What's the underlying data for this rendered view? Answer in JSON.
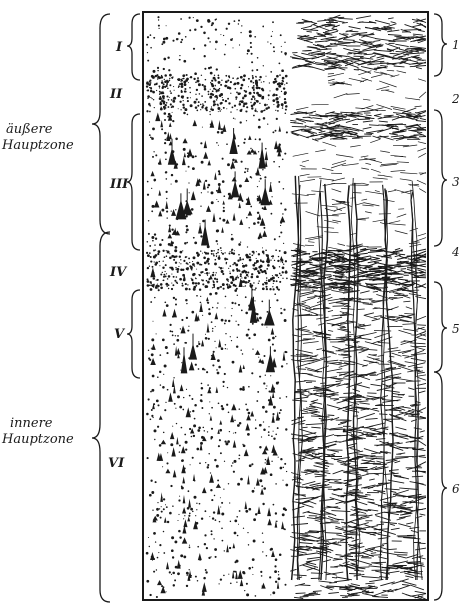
{
  "zones": {
    "outer": [
      "äußere",
      "Hauptzone"
    ],
    "inner": [
      "innere",
      "Hauptzone"
    ]
  },
  "layers": [
    "I",
    "II",
    "III",
    "IV",
    "V",
    "VI"
  ],
  "fiber_layers": [
    "1",
    "2",
    "3",
    "4",
    "5",
    "6"
  ]
}
